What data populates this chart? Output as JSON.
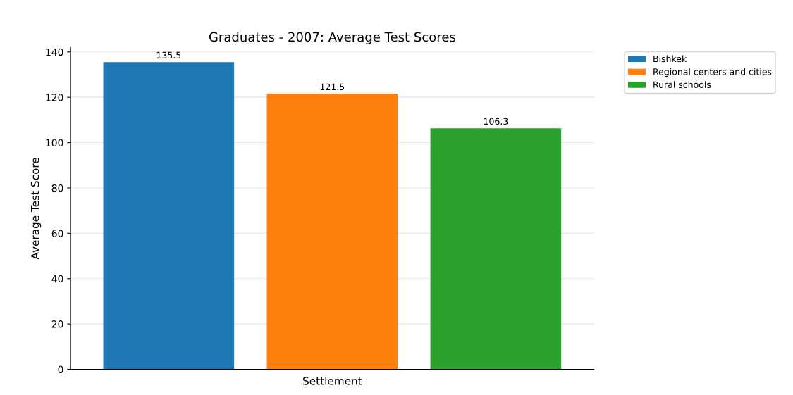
{
  "chart_data": {
    "type": "bar",
    "title": "Graduates - 2007: Average Test Scores",
    "xlabel": "Settlement",
    "ylabel": "Average Test Score",
    "categories": [
      null,
      null,
      null
    ],
    "series": [
      {
        "name": "Bishkek",
        "color": "#1f77b4",
        "values": [
          135.5,
          null,
          null
        ]
      },
      {
        "name": "Regional centers and cities",
        "color": "#ff7f0e",
        "values": [
          null,
          121.5,
          null
        ]
      },
      {
        "name": "Rural schools",
        "color": "#2ca02c",
        "values": [
          null,
          null,
          106.3
        ]
      }
    ],
    "ylim": [
      0,
      142
    ],
    "yticks": [
      0,
      20,
      40,
      60,
      80,
      100,
      120,
      140
    ],
    "grid": "y",
    "legend": "top right",
    "data_labels": true
  }
}
